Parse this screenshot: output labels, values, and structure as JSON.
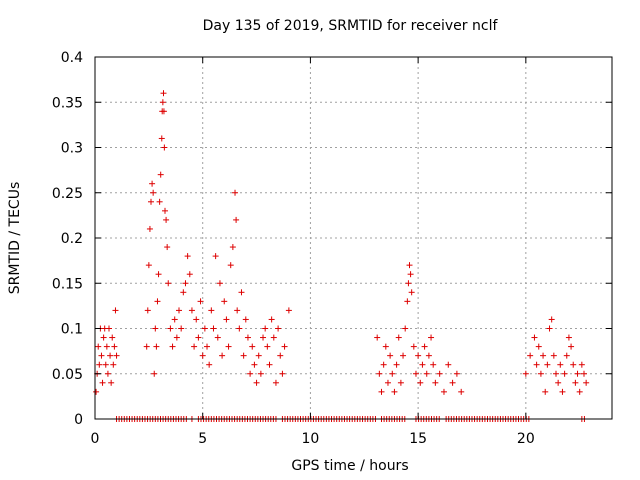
{
  "chart_data": {
    "type": "scatter",
    "title": "Day 135 of 2019, SRMTID for receiver nclf",
    "xlabel": "GPS time / hours",
    "ylabel": "SRMTID / TECUs",
    "xlim": [
      0,
      24
    ],
    "ylim": [
      0,
      0.4
    ],
    "xticks": [
      0,
      5,
      10,
      15,
      20
    ],
    "xtick_labels": [
      "0",
      "5",
      "10",
      "15",
      "20"
    ],
    "yticks": [
      0,
      0.05,
      0.1,
      0.15,
      0.2,
      0.25,
      0.3,
      0.35,
      0.4
    ],
    "ytick_labels": [
      "0",
      "0.05",
      "0.1",
      "0.15",
      "0.2",
      "0.25",
      "0.3",
      "0.35",
      "0.4"
    ],
    "grid": true,
    "marker": "+",
    "series_color": "#dd0000",
    "series": [
      {
        "name": "SRMTID",
        "points": [
          [
            0.05,
            0.03
          ],
          [
            0.1,
            0.05
          ],
          [
            0.15,
            0.08
          ],
          [
            0.2,
            0.06
          ],
          [
            0.25,
            0.1
          ],
          [
            0.3,
            0.07
          ],
          [
            0.35,
            0.04
          ],
          [
            0.4,
            0.09
          ],
          [
            0.45,
            0.1
          ],
          [
            0.5,
            0.06
          ],
          [
            0.55,
            0.08
          ],
          [
            0.6,
            0.05
          ],
          [
            0.65,
            0.1
          ],
          [
            0.7,
            0.07
          ],
          [
            0.75,
            0.04
          ],
          [
            0.8,
            0.09
          ],
          [
            0.85,
            0.06
          ],
          [
            0.9,
            0.08
          ],
          [
            0.95,
            0.12
          ],
          [
            1.0,
            0.07
          ],
          [
            2.4,
            0.08
          ],
          [
            2.45,
            0.12
          ],
          [
            2.5,
            0.17
          ],
          [
            2.55,
            0.21
          ],
          [
            2.6,
            0.24
          ],
          [
            2.65,
            0.26
          ],
          [
            2.7,
            0.25
          ],
          [
            2.75,
            0.05
          ],
          [
            2.8,
            0.1
          ],
          [
            2.85,
            0.08
          ],
          [
            2.9,
            0.13
          ],
          [
            2.95,
            0.16
          ],
          [
            3.0,
            0.24
          ],
          [
            3.05,
            0.27
          ],
          [
            3.1,
            0.31
          ],
          [
            3.12,
            0.34
          ],
          [
            3.15,
            0.35
          ],
          [
            3.18,
            0.36
          ],
          [
            3.2,
            0.34
          ],
          [
            3.22,
            0.3
          ],
          [
            3.25,
            0.23
          ],
          [
            3.3,
            0.22
          ],
          [
            3.35,
            0.19
          ],
          [
            3.4,
            0.15
          ],
          [
            3.5,
            0.1
          ],
          [
            3.6,
            0.08
          ],
          [
            3.7,
            0.11
          ],
          [
            3.8,
            0.09
          ],
          [
            3.9,
            0.12
          ],
          [
            4.0,
            0.1
          ],
          [
            4.1,
            0.14
          ],
          [
            4.2,
            0.15
          ],
          [
            4.3,
            0.18
          ],
          [
            4.4,
            0.16
          ],
          [
            4.5,
            0.12
          ],
          [
            4.6,
            0.08
          ],
          [
            4.7,
            0.11
          ],
          [
            4.8,
            0.09
          ],
          [
            4.9,
            0.13
          ],
          [
            5.0,
            0.07
          ],
          [
            5.1,
            0.1
          ],
          [
            5.2,
            0.08
          ],
          [
            5.3,
            0.06
          ],
          [
            5.4,
            0.12
          ],
          [
            5.5,
            0.1
          ],
          [
            5.6,
            0.18
          ],
          [
            5.7,
            0.09
          ],
          [
            5.8,
            0.15
          ],
          [
            5.9,
            0.07
          ],
          [
            6.0,
            0.13
          ],
          [
            6.1,
            0.11
          ],
          [
            6.2,
            0.08
          ],
          [
            6.3,
            0.17
          ],
          [
            6.4,
            0.19
          ],
          [
            6.5,
            0.25
          ],
          [
            6.55,
            0.22
          ],
          [
            6.6,
            0.12
          ],
          [
            6.7,
            0.1
          ],
          [
            6.8,
            0.14
          ],
          [
            6.9,
            0.07
          ],
          [
            7.0,
            0.11
          ],
          [
            7.1,
            0.09
          ],
          [
            7.2,
            0.05
          ],
          [
            7.3,
            0.08
          ],
          [
            7.4,
            0.06
          ],
          [
            7.5,
            0.04
          ],
          [
            7.6,
            0.07
          ],
          [
            7.7,
            0.05
          ],
          [
            7.8,
            0.09
          ],
          [
            7.9,
            0.1
          ],
          [
            8.0,
            0.08
          ],
          [
            8.1,
            0.06
          ],
          [
            8.2,
            0.11
          ],
          [
            8.3,
            0.09
          ],
          [
            8.4,
            0.04
          ],
          [
            8.5,
            0.1
          ],
          [
            8.6,
            0.07
          ],
          [
            8.7,
            0.05
          ],
          [
            8.8,
            0.08
          ],
          [
            9.0,
            0.12
          ],
          [
            13.1,
            0.09
          ],
          [
            13.2,
            0.05
          ],
          [
            13.3,
            0.03
          ],
          [
            13.4,
            0.06
          ],
          [
            13.5,
            0.08
          ],
          [
            13.6,
            0.04
          ],
          [
            13.7,
            0.07
          ],
          [
            13.8,
            0.05
          ],
          [
            13.9,
            0.03
          ],
          [
            14.0,
            0.06
          ],
          [
            14.1,
            0.09
          ],
          [
            14.2,
            0.04
          ],
          [
            14.3,
            0.07
          ],
          [
            14.4,
            0.1
          ],
          [
            14.5,
            0.13
          ],
          [
            14.55,
            0.15
          ],
          [
            14.6,
            0.17
          ],
          [
            14.65,
            0.16
          ],
          [
            14.7,
            0.14
          ],
          [
            14.8,
            0.08
          ],
          [
            14.9,
            0.05
          ],
          [
            15.0,
            0.07
          ],
          [
            15.1,
            0.04
          ],
          [
            15.2,
            0.06
          ],
          [
            15.3,
            0.08
          ],
          [
            15.4,
            0.05
          ],
          [
            15.5,
            0.07
          ],
          [
            15.6,
            0.09
          ],
          [
            15.7,
            0.06
          ],
          [
            15.8,
            0.04
          ],
          [
            16.0,
            0.05
          ],
          [
            16.2,
            0.03
          ],
          [
            16.4,
            0.06
          ],
          [
            16.6,
            0.04
          ],
          [
            16.8,
            0.05
          ],
          [
            17.0,
            0.03
          ],
          [
            20.0,
            0.05
          ],
          [
            20.2,
            0.07
          ],
          [
            20.4,
            0.09
          ],
          [
            20.5,
            0.06
          ],
          [
            20.6,
            0.08
          ],
          [
            20.7,
            0.05
          ],
          [
            20.8,
            0.07
          ],
          [
            20.9,
            0.03
          ],
          [
            21.0,
            0.06
          ],
          [
            21.1,
            0.1
          ],
          [
            21.2,
            0.11
          ],
          [
            21.3,
            0.07
          ],
          [
            21.4,
            0.05
          ],
          [
            21.5,
            0.04
          ],
          [
            21.6,
            0.06
          ],
          [
            21.7,
            0.03
          ],
          [
            21.8,
            0.05
          ],
          [
            21.9,
            0.07
          ],
          [
            22.0,
            0.09
          ],
          [
            22.1,
            0.08
          ],
          [
            22.2,
            0.06
          ],
          [
            22.3,
            0.04
          ],
          [
            22.4,
            0.05
          ],
          [
            22.5,
            0.03
          ],
          [
            22.6,
            0.06
          ],
          [
            22.7,
            0.05
          ],
          [
            22.8,
            0.04
          ]
        ],
        "zero_segments": [
          [
            1.0,
            4.3
          ],
          [
            4.5,
            4.6
          ],
          [
            4.8,
            8.5
          ],
          [
            8.7,
            13.1
          ],
          [
            13.3,
            14.4
          ],
          [
            14.9,
            15.4
          ],
          [
            15.5,
            16.0
          ],
          [
            16.3,
            20.2
          ],
          [
            22.6,
            22.8
          ]
        ]
      }
    ]
  }
}
